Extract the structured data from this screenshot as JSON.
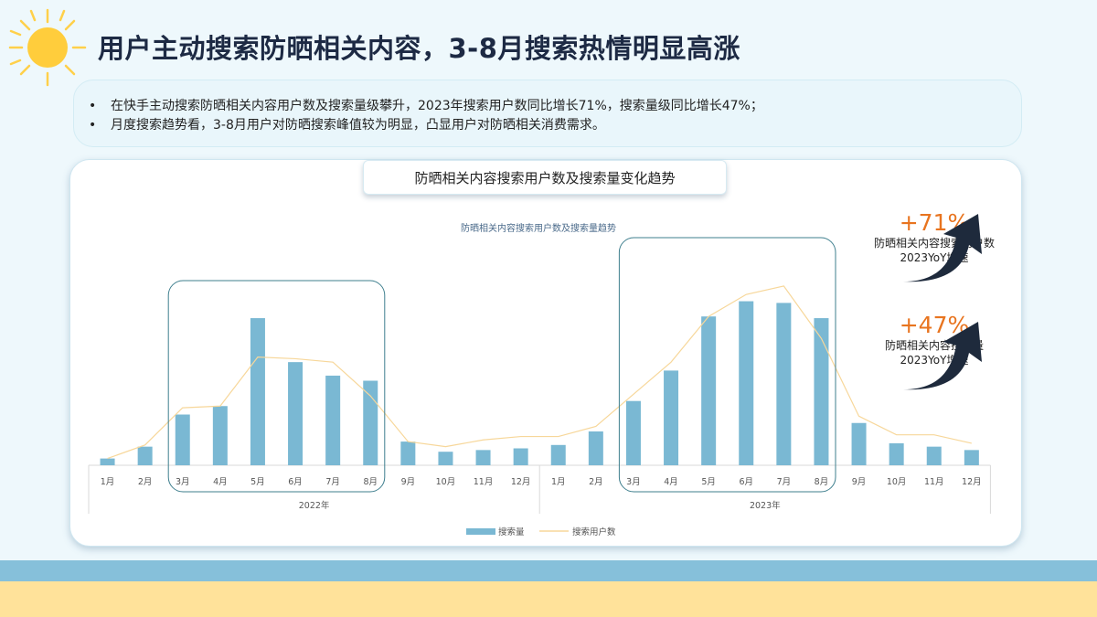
{
  "title": "用户主动搜索防晒相关内容，3-8月搜索热情明显高涨",
  "summary": [
    "在快手主动搜索防晒相关内容用户数及搜索量级攀升，2023年搜索用户数同比增长71%，搜索量级同比增长47%；",
    "月度搜索趋势看，3-8月用户对防晒搜索峰值较为明显，凸显用户对防晒相关消费需求。"
  ],
  "card_title": "防晒相关内容搜索用户数及搜索量变化趋势",
  "stats": [
    {
      "pct": "+71%",
      "line1": "防晒相关内容搜索用户数",
      "line2": "2023YoY增速"
    },
    {
      "pct": "+47%",
      "line1": "防晒相关内容搜索量",
      "line2": "2023YoY增速"
    }
  ],
  "colors": {
    "bar": "#7ab8d3",
    "line": "#f7d79a",
    "highlight": "#3f7f8e",
    "accent": "#e8741f",
    "arrow": "#1e2a3c"
  },
  "chart_data": {
    "type": "bar",
    "title": "防晒相关内容搜索用户数及搜索量趋势",
    "categories": [
      "1月",
      "2月",
      "3月",
      "4月",
      "5月",
      "6月",
      "7月",
      "8月",
      "9月",
      "10月",
      "11月",
      "12月",
      "1月",
      "2月",
      "3月",
      "4月",
      "5月",
      "6月",
      "7月",
      "8月",
      "9月",
      "10月",
      "11月",
      "12月"
    ],
    "groups": [
      {
        "label": "2022年",
        "from": 0,
        "to": 11
      },
      {
        "label": "2023年",
        "from": 12,
        "to": 23
      }
    ],
    "series": [
      {
        "name": "搜索量",
        "type": "bar",
        "values": [
          4,
          11,
          30,
          35,
          87,
          61,
          53,
          50,
          14,
          8,
          9,
          10,
          12,
          20,
          38,
          56,
          88,
          97,
          96,
          87,
          25,
          13,
          11,
          9
        ]
      },
      {
        "name": "搜索用户数",
        "type": "line",
        "values": [
          4,
          12,
          34,
          35,
          64,
          63,
          61,
          41,
          14,
          11,
          15,
          17,
          17,
          23,
          42,
          61,
          88,
          101,
          106,
          75,
          29,
          18,
          18,
          13
        ]
      }
    ],
    "highlights": [
      {
        "from": 2,
        "to": 7
      },
      {
        "from": 14,
        "to": 19
      }
    ],
    "legend": "bottom",
    "grid": false
  }
}
